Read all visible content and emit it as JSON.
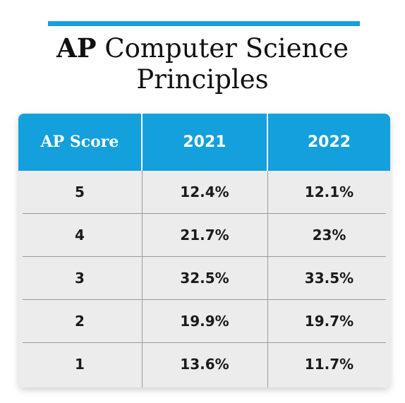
{
  "header": {
    "title_bold": "AP",
    "title_rest": "Computer Science",
    "title_line2": "Principles"
  },
  "colors": {
    "accent": "#13a0dc",
    "table_body": "#ececec",
    "header_text": "#ffffff"
  },
  "chart_data": {
    "type": "table",
    "title": "AP Computer Science Principles",
    "columns": [
      "AP Score",
      "2021",
      "2022"
    ],
    "rows": [
      [
        "5",
        "12.4%",
        "12.1%"
      ],
      [
        "4",
        "21.7%",
        "23%"
      ],
      [
        "3",
        "32.5%",
        "33.5%"
      ],
      [
        "2",
        "19.9%",
        "19.7%"
      ],
      [
        "1",
        "13.6%",
        "11.7%"
      ]
    ]
  }
}
